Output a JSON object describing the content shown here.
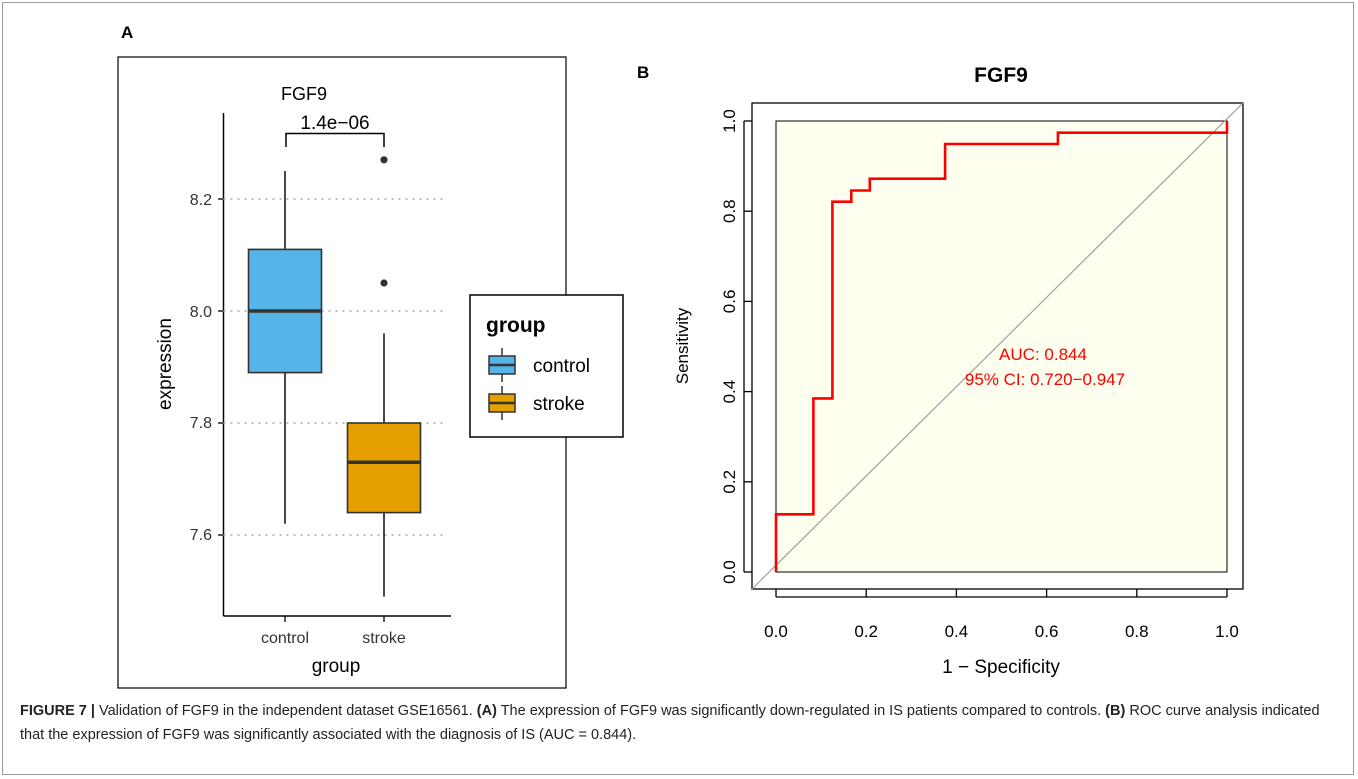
{
  "panel_labels": {
    "a": "A",
    "b": "B"
  },
  "colors": {
    "control": "#56B4E9",
    "stroke": "#E69F00",
    "roc_line": "#FF0000",
    "roc_fill": "#FFFFF0",
    "auc_text": "#FF0000",
    "gridline": "#bdbdbd",
    "diagonal": "#a0a0a0"
  },
  "chart_data": [
    {
      "type": "box",
      "title": "FGF9",
      "xlabel": "group",
      "ylabel": "expression",
      "categories": [
        "control",
        "stroke"
      ],
      "yticks": [
        "7.6",
        "7.8",
        "8.0",
        "8.2"
      ],
      "ylim": [
        7.46,
        8.35
      ],
      "grid": "horizontal dotted",
      "pvalue_label": "1.4e−06",
      "boxes": [
        {
          "name": "control",
          "whisker_low": 7.62,
          "q1": 7.89,
          "median": 8.0,
          "q3": 8.11,
          "whisker_high": 8.25,
          "outliers": []
        },
        {
          "name": "stroke",
          "whisker_low": 7.49,
          "q1": 7.64,
          "median": 7.73,
          "q3": 7.8,
          "whisker_high": 7.96,
          "outliers": [
            8.05,
            8.27
          ]
        }
      ],
      "legend": {
        "title": "group",
        "entries": [
          "control",
          "stroke"
        ],
        "placement": "right"
      }
    },
    {
      "type": "line",
      "title": "FGF9",
      "xlabel": "1 − Specificity",
      "ylabel": "Sensitivity",
      "xticks": [
        "0.0",
        "0.2",
        "0.4",
        "0.6",
        "0.8",
        "1.0"
      ],
      "yticks": [
        "0.0",
        "0.2",
        "0.4",
        "0.6",
        "0.8",
        "1.0"
      ],
      "xlim": [
        0,
        1
      ],
      "ylim": [
        0,
        1
      ],
      "series": [
        {
          "x": [
            0,
            0,
            0.083,
            0.083,
            0.125,
            0.125,
            0.167,
            0.167,
            0.208,
            0.208,
            0.375,
            0.375,
            0.625,
            0.625,
            1.0,
            1.0
          ],
          "y": [
            0,
            0.128,
            0.128,
            0.385,
            0.385,
            0.821,
            0.821,
            0.846,
            0.846,
            0.872,
            0.872,
            0.949,
            0.949,
            0.974,
            0.974,
            1.0
          ]
        }
      ],
      "annotations": [
        "AUC: 0.844",
        "95% CI: 0.720−0.947"
      ]
    }
  ],
  "caption": {
    "figure_label": "FIGURE 7 |",
    "intro": " Validation of FGF9 in the independent dataset GSE16561. ",
    "a_label": "(A)",
    "a_text": " The expression of FGF9 was significantly down-regulated in IS patients compared to controls. ",
    "b_label": "(B)",
    "b_text": " ROC curve analysis indicated that the expression of FGF9 was significantly associated with the diagnosis of IS (AUC = 0.844)."
  }
}
